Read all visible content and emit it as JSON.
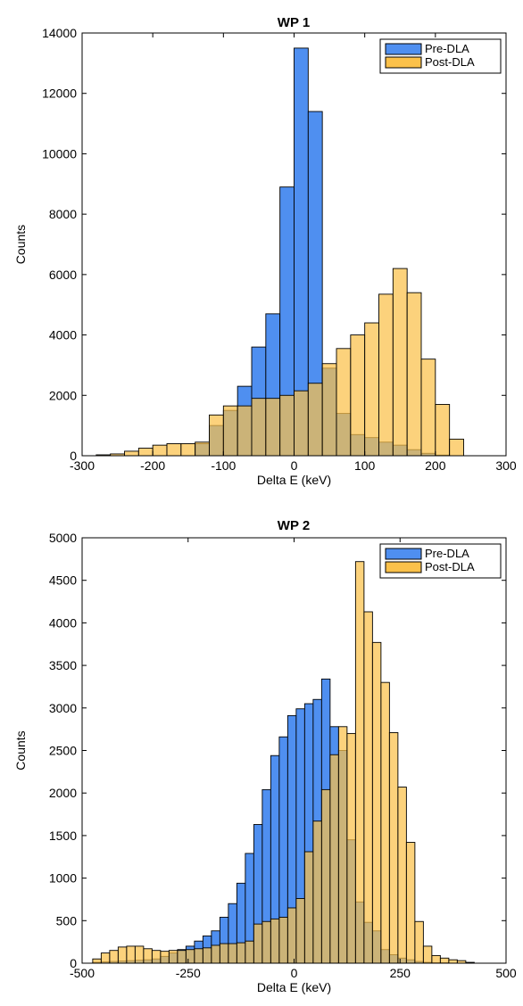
{
  "chart_data": [
    {
      "type": "bar",
      "title": "WP 1",
      "xlabel": "Delta E (keV)",
      "ylabel": "Counts",
      "xlim": [
        -300,
        300
      ],
      "ylim": [
        0,
        14000
      ],
      "xticks": [
        -300,
        -200,
        -100,
        0,
        100,
        200,
        300
      ],
      "yticks": [
        0,
        2000,
        4000,
        6000,
        8000,
        10000,
        12000,
        14000
      ],
      "bin_edges": [
        -280,
        -260,
        -240,
        -220,
        -200,
        -180,
        -160,
        -140,
        -120,
        -100,
        -80,
        -60,
        -40,
        -20,
        0,
        20,
        40,
        60,
        80,
        100,
        120,
        140,
        160,
        180,
        200,
        220,
        240
      ],
      "series": [
        {
          "name": "Pre-DLA",
          "color": "#4f8ff0",
          "values": [
            0,
            0,
            0,
            0,
            0,
            0,
            0,
            400,
            1000,
            1500,
            2300,
            3600,
            4700,
            8900,
            13500,
            11400,
            2900,
            1400,
            700,
            600,
            450,
            350,
            200,
            80,
            20,
            0
          ]
        },
        {
          "name": "Post-DLA",
          "color": "#fbc14a",
          "values": [
            30,
            60,
            150,
            250,
            350,
            400,
            400,
            450,
            1350,
            1650,
            1650,
            1900,
            1900,
            2000,
            2150,
            2400,
            3050,
            3550,
            4000,
            4400,
            5350,
            6200,
            5400,
            3200,
            1700,
            550
          ]
        }
      ],
      "legend_position": "top-right"
    },
    {
      "type": "bar",
      "title": "WP 2",
      "xlabel": "Delta E (keV)",
      "ylabel": "Counts",
      "xlim": [
        -500,
        500
      ],
      "ylim": [
        0,
        5000
      ],
      "xticks": [
        -500,
        -250,
        0,
        250,
        500
      ],
      "xtick_labels": [
        "-500",
        "-250",
        "0",
        "250",
        "500"
      ],
      "yticks": [
        0,
        500,
        1000,
        1500,
        2000,
        2500,
        3000,
        3500,
        4000,
        4500,
        5000
      ],
      "bin_edges": [
        -475,
        -455,
        -435,
        -415,
        -395,
        -375,
        -355,
        -335,
        -315,
        -295,
        -275,
        -255,
        -235,
        -215,
        -195,
        -175,
        -155,
        -135,
        -115,
        -95,
        -75,
        -55,
        -35,
        -15,
        5,
        25,
        45,
        65,
        85,
        105,
        125,
        145,
        165,
        185,
        205,
        225,
        245,
        265,
        285,
        305,
        325,
        345,
        365,
        385,
        405,
        425
      ],
      "series": [
        {
          "name": "Pre-DLA",
          "color": "#4f8ff0",
          "values": [
            10,
            15,
            20,
            25,
            30,
            35,
            40,
            50,
            80,
            120,
            160,
            200,
            260,
            320,
            380,
            540,
            700,
            940,
            1290,
            1630,
            2040,
            2440,
            2660,
            2910,
            2990,
            3050,
            3100,
            3340,
            2780,
            2500,
            1450,
            720,
            480,
            380,
            160,
            100,
            60,
            40,
            20,
            10,
            5,
            5,
            0,
            0,
            0
          ]
        },
        {
          "name": "Post-DLA",
          "color": "#fbc14a",
          "values": [
            50,
            120,
            150,
            190,
            200,
            200,
            170,
            150,
            140,
            150,
            150,
            160,
            170,
            180,
            210,
            230,
            230,
            240,
            260,
            460,
            490,
            520,
            540,
            650,
            760,
            1310,
            1670,
            2040,
            2450,
            2780,
            2700,
            4720,
            4130,
            3770,
            3300,
            2710,
            2070,
            1420,
            490,
            200,
            90,
            60,
            40,
            30,
            10
          ]
        }
      ],
      "legend_position": "top-right"
    }
  ]
}
